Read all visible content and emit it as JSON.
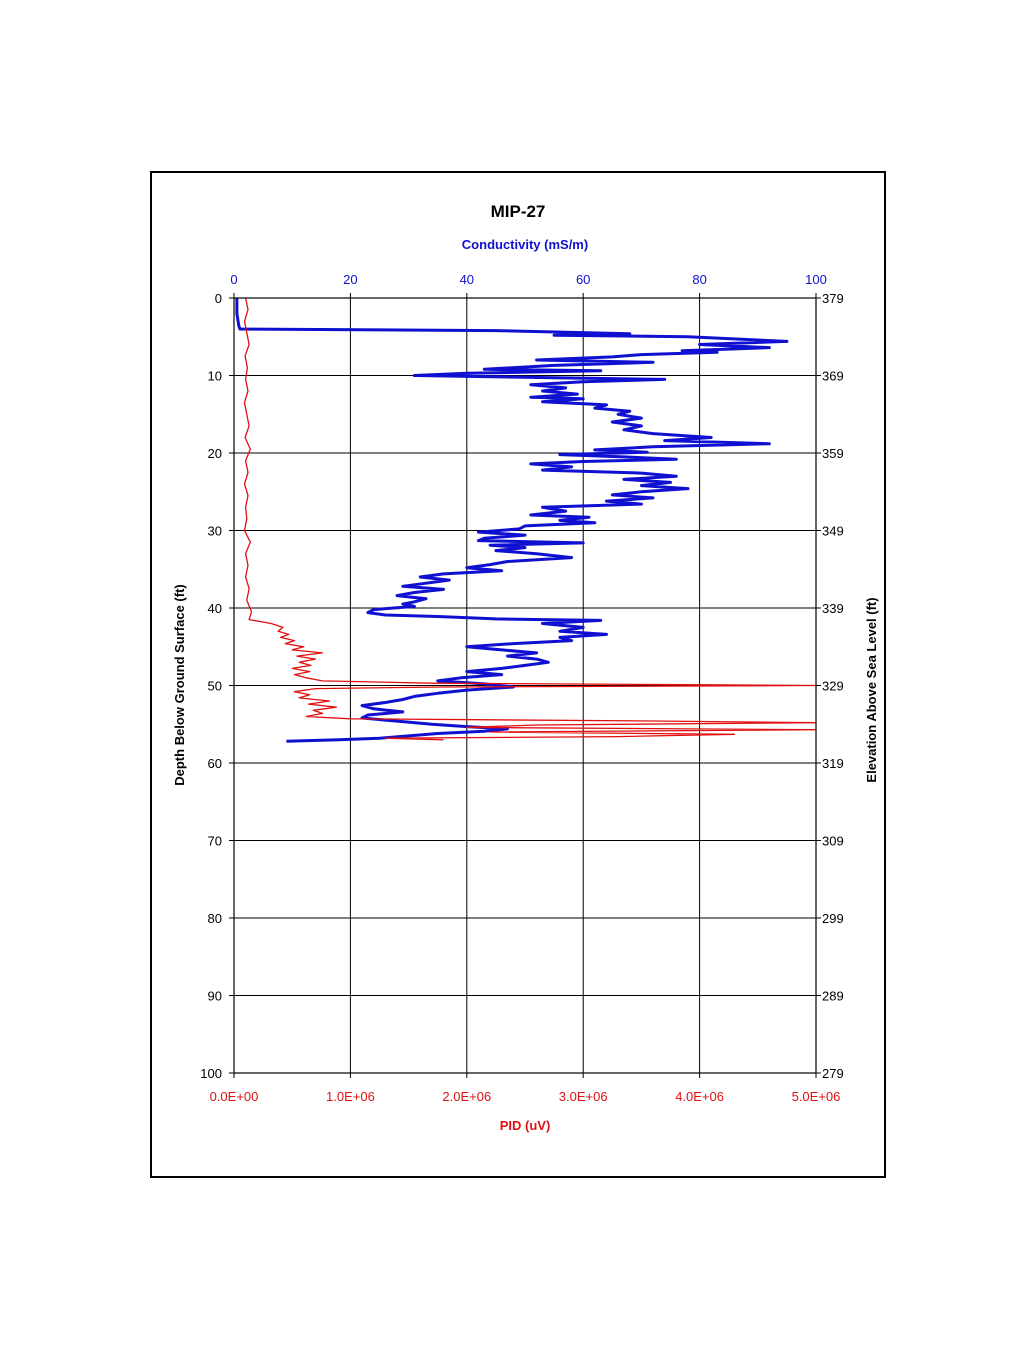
{
  "chart_data": {
    "type": "line",
    "title": "MIP-27",
    "top_axis": {
      "label": "Conductivity (mS/m)",
      "range": [
        0,
        100
      ],
      "ticks": [
        "0",
        "20",
        "40",
        "60",
        "80",
        "100"
      ],
      "color": "#1010d0"
    },
    "bottom_axis": {
      "label": "PID (uV)",
      "range": [
        0,
        5000000
      ],
      "ticks": [
        "0.0E+00",
        "1.0E+06",
        "2.0E+06",
        "3.0E+06",
        "4.0E+06",
        "5.0E+06"
      ],
      "color": "#e01010"
    },
    "left_axis": {
      "label": "Depth Below Ground Surface (ft)",
      "range": [
        0,
        100
      ],
      "inverted": true,
      "ticks": [
        "0",
        "10",
        "20",
        "30",
        "40",
        "50",
        "60",
        "70",
        "80",
        "90",
        "100"
      ]
    },
    "right_axis": {
      "label": "Elevation Above Sea Level (ft)",
      "ticks": [
        "379",
        "369",
        "359",
        "349",
        "339",
        "329",
        "319",
        "309",
        "299",
        "289",
        "279"
      ]
    },
    "grid": true,
    "series": [
      {
        "key": "conductivity",
        "axis": "top",
        "color": "#1010d0",
        "points": [
          [
            0.5,
            0
          ],
          [
            0.5,
            2
          ],
          [
            0.8,
            3.5
          ],
          [
            1,
            4
          ],
          [
            45,
            4.2
          ],
          [
            68,
            4.6
          ],
          [
            55,
            4.8
          ],
          [
            78,
            5
          ],
          [
            95,
            5.6
          ],
          [
            80,
            6
          ],
          [
            92,
            6.4
          ],
          [
            77,
            6.8
          ],
          [
            83,
            7
          ],
          [
            70,
            7.3
          ],
          [
            65,
            7.6
          ],
          [
            52,
            8
          ],
          [
            72,
            8.3
          ],
          [
            55,
            8.7
          ],
          [
            43,
            9.2
          ],
          [
            63,
            9.4
          ],
          [
            40,
            9.7
          ],
          [
            31,
            10
          ],
          [
            55,
            10.3
          ],
          [
            74,
            10.5
          ],
          [
            60,
            10.8
          ],
          [
            51,
            11.2
          ],
          [
            57,
            11.6
          ],
          [
            53,
            12
          ],
          [
            59,
            12.4
          ],
          [
            51,
            12.8
          ],
          [
            60,
            13
          ],
          [
            53,
            13.4
          ],
          [
            64,
            13.8
          ],
          [
            62,
            14.2
          ],
          [
            68,
            14.6
          ],
          [
            66,
            15
          ],
          [
            70,
            15.5
          ],
          [
            65,
            16
          ],
          [
            70,
            16.5
          ],
          [
            67,
            17
          ],
          [
            72,
            17.5
          ],
          [
            82,
            18
          ],
          [
            74,
            18.4
          ],
          [
            92,
            18.8
          ],
          [
            72,
            19.2
          ],
          [
            62,
            19.6
          ],
          [
            71,
            19.9
          ],
          [
            56,
            20.2
          ],
          [
            67,
            20.5
          ],
          [
            76,
            20.8
          ],
          [
            60,
            21.1
          ],
          [
            51,
            21.4
          ],
          [
            58,
            21.8
          ],
          [
            53,
            22.2
          ],
          [
            70,
            22.6
          ],
          [
            76,
            23
          ],
          [
            67,
            23.4
          ],
          [
            75,
            23.8
          ],
          [
            70,
            24.2
          ],
          [
            78,
            24.6
          ],
          [
            70,
            25
          ],
          [
            65,
            25.4
          ],
          [
            72,
            25.8
          ],
          [
            64,
            26.2
          ],
          [
            70,
            26.6
          ],
          [
            53,
            27
          ],
          [
            57,
            27.5
          ],
          [
            51,
            28
          ],
          [
            61,
            28.3
          ],
          [
            56,
            28.7
          ],
          [
            62,
            29
          ],
          [
            50,
            29.4
          ],
          [
            49,
            29.8
          ],
          [
            42,
            30.2
          ],
          [
            50,
            30.6
          ],
          [
            43,
            31
          ],
          [
            42,
            31.3
          ],
          [
            60,
            31.6
          ],
          [
            44,
            31.9
          ],
          [
            50,
            32.2
          ],
          [
            45,
            32.6
          ],
          [
            52,
            33
          ],
          [
            58,
            33.5
          ],
          [
            47,
            34
          ],
          [
            44,
            34.4
          ],
          [
            40,
            34.8
          ],
          [
            46,
            35.2
          ],
          [
            36,
            35.6
          ],
          [
            32,
            36
          ],
          [
            37,
            36.4
          ],
          [
            33,
            36.8
          ],
          [
            29,
            37.2
          ],
          [
            36,
            37.6
          ],
          [
            31,
            38
          ],
          [
            28,
            38.4
          ],
          [
            33,
            38.8
          ],
          [
            31,
            39.2
          ],
          [
            29,
            39.5
          ],
          [
            31,
            39.8
          ],
          [
            24,
            40.2
          ],
          [
            23,
            40.6
          ],
          [
            26,
            40.9
          ],
          [
            35,
            41.1
          ],
          [
            45,
            41.4
          ],
          [
            63,
            41.6
          ],
          [
            53,
            42
          ],
          [
            60,
            42.5
          ],
          [
            56,
            43
          ],
          [
            64,
            43.4
          ],
          [
            56,
            43.8
          ],
          [
            58,
            44.2
          ],
          [
            48,
            44.6
          ],
          [
            40,
            45
          ],
          [
            46,
            45.4
          ],
          [
            52,
            45.8
          ],
          [
            47,
            46.2
          ],
          [
            52,
            46.6
          ],
          [
            54,
            47
          ],
          [
            50,
            47.4
          ],
          [
            46,
            47.8
          ],
          [
            40,
            48.2
          ],
          [
            46,
            48.6
          ],
          [
            39,
            49
          ],
          [
            35,
            49.4
          ],
          [
            43,
            49.8
          ],
          [
            48,
            50.2
          ],
          [
            40,
            50.6
          ],
          [
            35,
            51
          ],
          [
            31,
            51.4
          ],
          [
            29,
            51.8
          ],
          [
            26,
            52.2
          ],
          [
            22,
            52.6
          ],
          [
            24,
            53
          ],
          [
            29,
            53.4
          ],
          [
            23,
            53.8
          ],
          [
            22,
            54.2
          ],
          [
            28,
            54.6
          ],
          [
            34,
            55
          ],
          [
            40,
            55.3
          ],
          [
            47,
            55.6
          ],
          [
            43,
            55.9
          ],
          [
            35,
            56.2
          ],
          [
            30,
            56.5
          ],
          [
            25,
            56.8
          ],
          [
            18,
            57
          ],
          [
            9,
            57.2
          ]
        ]
      },
      {
        "key": "pid",
        "axis": "bottom",
        "color": "#e01010",
        "points": [
          [
            100000,
            0
          ],
          [
            120000,
            1.5
          ],
          [
            90000,
            3
          ],
          [
            110000,
            4.5
          ],
          [
            130000,
            6
          ],
          [
            95000,
            7.5
          ],
          [
            115000,
            9
          ],
          [
            100000,
            10.5
          ],
          [
            120000,
            12
          ],
          [
            90000,
            13.5
          ],
          [
            110000,
            15
          ],
          [
            130000,
            16.5
          ],
          [
            95000,
            18
          ],
          [
            140000,
            19.5
          ],
          [
            100000,
            21
          ],
          [
            120000,
            22.5
          ],
          [
            90000,
            24
          ],
          [
            120000,
            25.5
          ],
          [
            100000,
            27
          ],
          [
            110000,
            28.5
          ],
          [
            90000,
            30
          ],
          [
            140000,
            31.5
          ],
          [
            100000,
            33
          ],
          [
            120000,
            34.5
          ],
          [
            100000,
            36
          ],
          [
            130000,
            37.5
          ],
          [
            110000,
            39
          ],
          [
            150000,
            40.5
          ],
          [
            130000,
            41.5
          ],
          [
            320000,
            42
          ],
          [
            420000,
            42.5
          ],
          [
            380000,
            43
          ],
          [
            470000,
            43.4
          ],
          [
            400000,
            43.8
          ],
          [
            520000,
            44.2
          ],
          [
            440000,
            44.6
          ],
          [
            600000,
            45
          ],
          [
            500000,
            45.4
          ],
          [
            760000,
            45.8
          ],
          [
            540000,
            46.2
          ],
          [
            700000,
            46.6
          ],
          [
            560000,
            47
          ],
          [
            660000,
            47.4
          ],
          [
            500000,
            47.8
          ],
          [
            650000,
            48.2
          ],
          [
            520000,
            48.6
          ],
          [
            620000,
            49
          ],
          [
            760000,
            49.4
          ],
          [
            1700000,
            49.7
          ],
          [
            3900000,
            49.9
          ],
          [
            5000000,
            50
          ],
          [
            1800000,
            50.2
          ],
          [
            700000,
            50.4
          ],
          [
            520000,
            50.8
          ],
          [
            650000,
            51.2
          ],
          [
            560000,
            51.6
          ],
          [
            820000,
            52
          ],
          [
            640000,
            52.4
          ],
          [
            880000,
            52.8
          ],
          [
            680000,
            53.2
          ],
          [
            760000,
            53.6
          ],
          [
            620000,
            54
          ],
          [
            1000000,
            54.3
          ],
          [
            3700000,
            54.6
          ],
          [
            5000000,
            54.8
          ],
          [
            2600000,
            55.1
          ],
          [
            2000000,
            55.4
          ],
          [
            5000000,
            55.7
          ],
          [
            2200000,
            56
          ],
          [
            4300000,
            56.3
          ],
          [
            3300000,
            56.6
          ],
          [
            1300000,
            56.8
          ],
          [
            1800000,
            57
          ]
        ]
      }
    ]
  }
}
